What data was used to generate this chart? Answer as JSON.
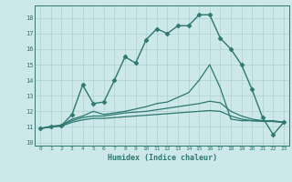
{
  "title": "",
  "xlabel": "Humidex (Indice chaleur)",
  "xlim": [
    -0.5,
    23.5
  ],
  "ylim": [
    9.8,
    18.8
  ],
  "yticks": [
    10,
    11,
    12,
    13,
    14,
    15,
    16,
    17,
    18
  ],
  "xticks": [
    0,
    1,
    2,
    3,
    4,
    5,
    6,
    7,
    8,
    9,
    10,
    11,
    12,
    13,
    14,
    15,
    16,
    17,
    18,
    19,
    20,
    21,
    22,
    23
  ],
  "bg_color": "#cce8e8",
  "line_color": "#2d7870",
  "grid_color": "#b0d0d0",
  "lines": [
    {
      "x": [
        0,
        1,
        2,
        3,
        4,
        5,
        6,
        7,
        8,
        9,
        10,
        11,
        12,
        13,
        14,
        15,
        16,
        17,
        18,
        19,
        20,
        21,
        22,
        23
      ],
      "y": [
        10.9,
        11.0,
        11.1,
        11.8,
        13.7,
        12.5,
        12.6,
        14.0,
        15.5,
        15.1,
        16.6,
        17.3,
        17.0,
        17.5,
        17.5,
        18.2,
        18.2,
        16.7,
        16.0,
        15.0,
        13.4,
        11.6,
        10.5,
        11.3
      ],
      "marker": "D",
      "markersize": 2.5,
      "linewidth": 1.0
    },
    {
      "x": [
        0,
        1,
        2,
        3,
        4,
        5,
        6,
        7,
        8,
        9,
        10,
        11,
        12,
        13,
        14,
        15,
        16,
        17,
        18,
        19,
        20,
        21,
        22,
        23
      ],
      "y": [
        10.9,
        11.05,
        11.1,
        11.5,
        11.7,
        12.0,
        11.8,
        11.9,
        12.0,
        12.15,
        12.3,
        12.5,
        12.6,
        12.9,
        13.2,
        14.0,
        15.0,
        13.5,
        11.5,
        11.4,
        11.4,
        11.4,
        11.4,
        11.3
      ],
      "marker": null,
      "markersize": 0,
      "linewidth": 0.9
    },
    {
      "x": [
        0,
        1,
        2,
        3,
        4,
        5,
        6,
        7,
        8,
        9,
        10,
        11,
        12,
        13,
        14,
        15,
        16,
        17,
        18,
        19,
        20,
        21,
        22,
        23
      ],
      "y": [
        10.9,
        11.0,
        11.1,
        11.4,
        11.6,
        11.7,
        11.7,
        11.8,
        11.9,
        11.95,
        12.0,
        12.1,
        12.2,
        12.3,
        12.4,
        12.5,
        12.65,
        12.55,
        12.0,
        11.7,
        11.5,
        11.4,
        11.35,
        11.3
      ],
      "marker": null,
      "markersize": 0,
      "linewidth": 0.9
    },
    {
      "x": [
        0,
        1,
        2,
        3,
        4,
        5,
        6,
        7,
        8,
        9,
        10,
        11,
        12,
        13,
        14,
        15,
        16,
        17,
        18,
        19,
        20,
        21,
        22,
        23
      ],
      "y": [
        10.9,
        11.0,
        11.05,
        11.3,
        11.45,
        11.55,
        11.55,
        11.6,
        11.65,
        11.7,
        11.75,
        11.8,
        11.85,
        11.9,
        11.95,
        12.0,
        12.05,
        12.0,
        11.7,
        11.5,
        11.4,
        11.35,
        11.35,
        11.3
      ],
      "marker": null,
      "markersize": 0,
      "linewidth": 0.9
    }
  ]
}
